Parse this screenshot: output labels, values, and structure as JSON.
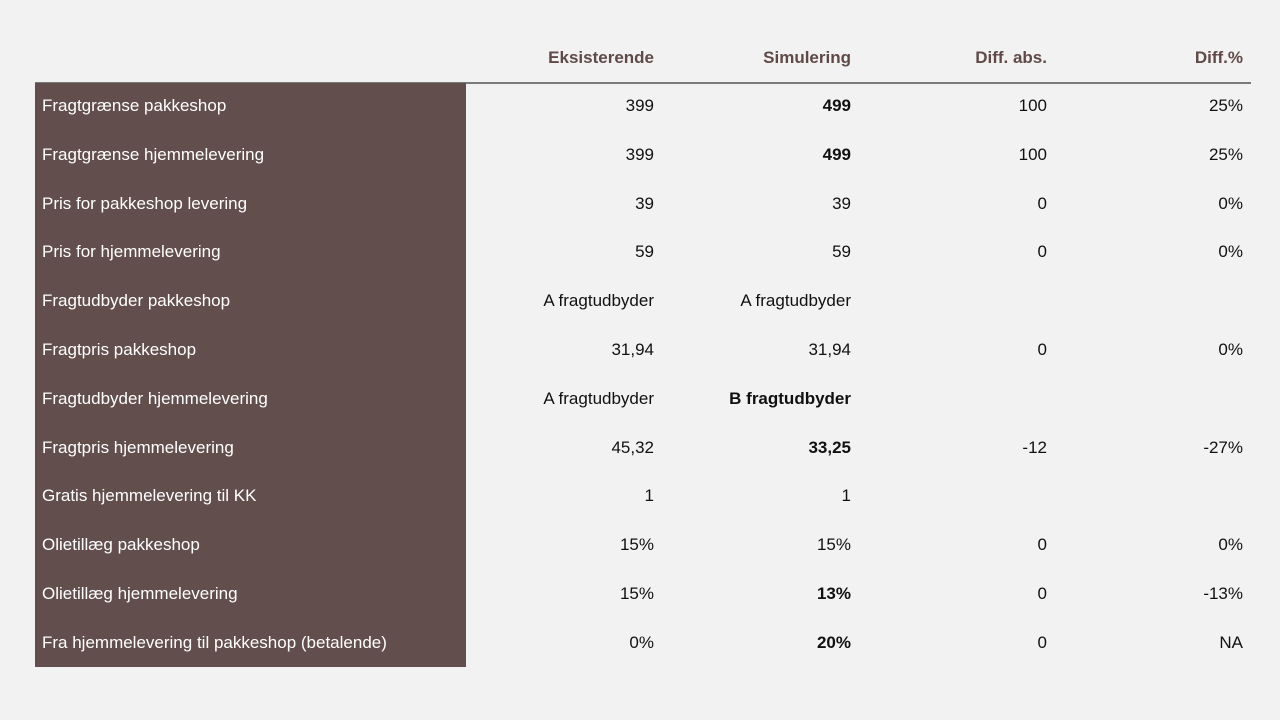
{
  "headers": {
    "existing": "Eksisterende",
    "simulation": "Simulering",
    "diff_abs": "Diff. abs.",
    "diff_pct": "Diff.%"
  },
  "colors": {
    "label_bg": "#624e4c",
    "header_text": "#5f4a48",
    "background": "#f2f2f2"
  },
  "rows": [
    {
      "label": "Fragtgrænse pakkeshop",
      "existing": "399",
      "simulation": "499",
      "sim_bold": true,
      "diff_abs": "100",
      "diff_pct": "25%"
    },
    {
      "label": "Fragtgrænse hjemmelevering",
      "existing": "399",
      "simulation": "499",
      "sim_bold": true,
      "diff_abs": "100",
      "diff_pct": "25%"
    },
    {
      "label": "Pris for pakkeshop levering",
      "existing": "39",
      "simulation": "39",
      "sim_bold": false,
      "diff_abs": "0",
      "diff_pct": "0%"
    },
    {
      "label": "Pris for hjemmelevering",
      "existing": "59",
      "simulation": "59",
      "sim_bold": false,
      "diff_abs": "0",
      "diff_pct": "0%"
    },
    {
      "label": "Fragtudbyder pakkeshop",
      "existing": "A fragtudbyder",
      "simulation": "A fragtudbyder",
      "sim_bold": false,
      "diff_abs": "",
      "diff_pct": ""
    },
    {
      "label": "Fragtpris pakkeshop",
      "existing": "31,94",
      "simulation": "31,94",
      "sim_bold": false,
      "diff_abs": "0",
      "diff_pct": "0%"
    },
    {
      "label": "Fragtudbyder hjemmelevering",
      "existing": "A fragtudbyder",
      "simulation": "B fragtudbyder",
      "sim_bold": true,
      "diff_abs": "",
      "diff_pct": ""
    },
    {
      "label": "Fragtpris hjemmelevering",
      "existing": "45,32",
      "simulation": "33,25",
      "sim_bold": true,
      "diff_abs": "-12",
      "diff_pct": "-27%"
    },
    {
      "label": "Gratis hjemmelevering til KK",
      "existing": "1",
      "simulation": "1",
      "sim_bold": false,
      "diff_abs": "",
      "diff_pct": ""
    },
    {
      "label": "Olietillæg pakkeshop",
      "existing": "15%",
      "simulation": "15%",
      "sim_bold": false,
      "diff_abs": "0",
      "diff_pct": "0%"
    },
    {
      "label": "Olietillæg hjemmelevering",
      "existing": "15%",
      "simulation": "13%",
      "sim_bold": true,
      "diff_abs": "0",
      "diff_pct": "-13%"
    },
    {
      "label": "Fra hjemmelevering til pakkeshop (betalende)",
      "existing": "0%",
      "simulation": "20%",
      "sim_bold": true,
      "diff_abs": "0",
      "diff_pct": "NA"
    }
  ]
}
